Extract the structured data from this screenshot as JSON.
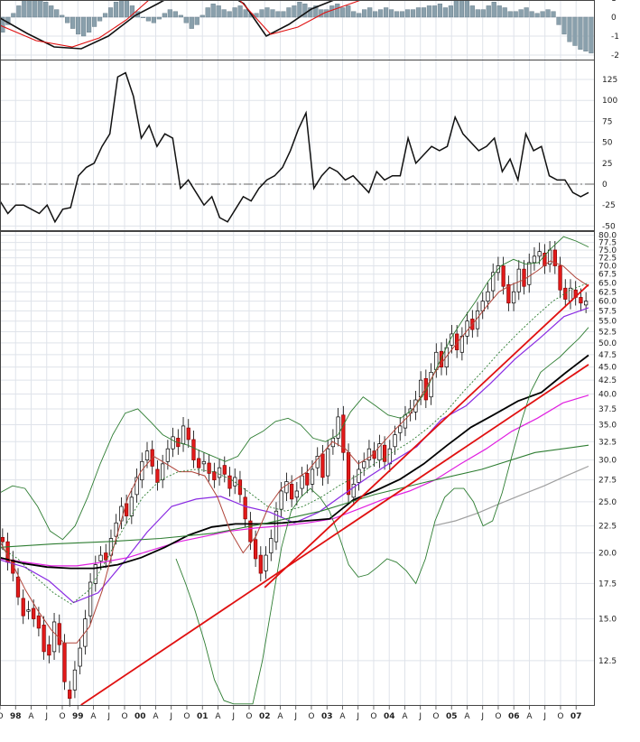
{
  "colors": {
    "grid": "#dfe3ea",
    "frame": "#444444",
    "hist_bar": "#8aa0ac",
    "macd_line": "#111111",
    "signal_line": "#e01010",
    "cci_line": "#111111",
    "candle_down": "#e31a1a",
    "candle_up": "#ffffff",
    "sma_black": "#000000",
    "purple_ma": "#8a2be2",
    "magenta_ma": "#e020e0",
    "green_band": "#2e7d32",
    "brown_ma": "#b0453a",
    "gray_ma": "#a0a0a0",
    "trendline": "#e01010"
  },
  "chart_data": [
    {
      "type": "bar",
      "panel": "macd-histogram",
      "y_ticks": [
        "1",
        "0",
        "-1",
        "-2"
      ],
      "ylim": [
        -2.3,
        1.5
      ]
    },
    {
      "type": "line",
      "panel": "cci",
      "y_ticks": [
        "125",
        "100",
        "75",
        "50",
        "25",
        "0",
        "-25",
        "-50"
      ],
      "ylim": [
        -52,
        140
      ],
      "zero_line": 0
    },
    {
      "type": "line",
      "panel": "price",
      "scale": "log",
      "y_ticks": [
        "80.0",
        "77.5",
        "75.0",
        "72.5",
        "70.0",
        "67.5",
        "65.0",
        "62.5",
        "60.0",
        "57.5",
        "55.0",
        "52.5",
        "50.0",
        "47.5",
        "45.0",
        "42.5",
        "40.0",
        "37.5",
        "35.0",
        "32.5",
        "30.0",
        "27.5",
        "25.0",
        "22.5",
        "20.0",
        "17.5",
        "15.0",
        "12.5"
      ],
      "ylim": [
        10.3,
        80.5
      ],
      "x_labels": [
        "O",
        "98",
        "A",
        "J",
        "O",
        "99",
        "A",
        "J",
        "O",
        "00",
        "A",
        "J",
        "O",
        "01",
        "A",
        "J",
        "O",
        "02",
        "A",
        "J",
        "O",
        "03",
        "A",
        "J",
        "O",
        "04",
        "A",
        "J",
        "O",
        "05",
        "A",
        "J",
        "O",
        "06",
        "A",
        "J",
        "O",
        "07"
      ],
      "series": [
        {
          "type": "candlestick",
          "values": [
            [
              21.4,
              21.0
            ],
            [
              21.0,
              19.2
            ],
            [
              19.4,
              18.3
            ],
            [
              18.0,
              16.5
            ],
            [
              16.4,
              15.2
            ],
            [
              15.5,
              15.6
            ],
            [
              15.7,
              15.0
            ],
            [
              15.2,
              14.4
            ],
            [
              14.6,
              13.0
            ],
            [
              13.4,
              12.8
            ],
            [
              13.0,
              14.8
            ],
            [
              14.7,
              13.4
            ],
            [
              13.5,
              11.4
            ],
            [
              11.0,
              10.6
            ],
            [
              11.0,
              12.0
            ],
            [
              12.2,
              13.2
            ],
            [
              13.3,
              15.0
            ],
            [
              15.2,
              17.6
            ],
            [
              17.5,
              19.0
            ],
            [
              19.3,
              19.8
            ],
            [
              20.0,
              19.4
            ],
            [
              19.8,
              21.3
            ],
            [
              21.5,
              22.8
            ],
            [
              23.0,
              24.5
            ],
            [
              24.8,
              23.5
            ],
            [
              23.5,
              25.5
            ],
            [
              25.8,
              27.8
            ],
            [
              27.5,
              29.8
            ],
            [
              30.0,
              31.2
            ],
            [
              31.4,
              29.2
            ],
            [
              28.8,
              27.2
            ],
            [
              27.5,
              29.5
            ],
            [
              29.8,
              31.5
            ],
            [
              31.5,
              33.2
            ],
            [
              33.0,
              31.8
            ],
            [
              32.2,
              34.8
            ],
            [
              34.5,
              32.8
            ],
            [
              32.8,
              30.0
            ],
            [
              30.2,
              29.0
            ],
            [
              29.5,
              29.8
            ],
            [
              29.6,
              28.3
            ],
            [
              28.5,
              27.5
            ],
            [
              27.8,
              29.0
            ],
            [
              29.3,
              28.2
            ],
            [
              28.0,
              26.5
            ],
            [
              26.8,
              27.8
            ],
            [
              27.5,
              25.8
            ],
            [
              25.5,
              23.2
            ],
            [
              23.0,
              21.0
            ],
            [
              21.2,
              19.5
            ],
            [
              19.8,
              18.3
            ],
            [
              18.5,
              19.8
            ],
            [
              20.0,
              21.3
            ],
            [
              21.0,
              24.0
            ],
            [
              24.2,
              26.2
            ],
            [
              26.0,
              27.3
            ],
            [
              27.0,
              25.3
            ],
            [
              25.5,
              26.2
            ],
            [
              26.5,
              28.0
            ],
            [
              28.3,
              26.9
            ],
            [
              27.0,
              28.8
            ],
            [
              29.0,
              30.5
            ],
            [
              30.8,
              27.8
            ],
            [
              28.0,
              31.5
            ],
            [
              31.8,
              33.0
            ],
            [
              33.0,
              36.2
            ],
            [
              36.5,
              31.0
            ],
            [
              31.0,
              25.8
            ],
            [
              25.5,
              27.0
            ],
            [
              27.2,
              28.8
            ],
            [
              29.0,
              29.8
            ],
            [
              30.0,
              31.5
            ],
            [
              31.2,
              30.2
            ],
            [
              30.0,
              32.2
            ],
            [
              32.0,
              29.8
            ],
            [
              29.5,
              31.5
            ],
            [
              31.8,
              33.5
            ],
            [
              33.8,
              34.8
            ],
            [
              34.5,
              36.5
            ],
            [
              36.8,
              37.5
            ],
            [
              37.0,
              39.0
            ],
            [
              39.5,
              42.5
            ],
            [
              42.8,
              39.0
            ],
            [
              39.5,
              44.0
            ],
            [
              44.5,
              48.0
            ],
            [
              48.2,
              45.0
            ],
            [
              45.0,
              49.0
            ],
            [
              49.5,
              52.0
            ],
            [
              52.0,
              48.5
            ],
            [
              48.0,
              51.5
            ],
            [
              51.5,
              55.0
            ],
            [
              55.5,
              53.0
            ],
            [
              53.2,
              57.5
            ],
            [
              57.5,
              60.0
            ],
            [
              60.0,
              62.5
            ],
            [
              62.8,
              68.0
            ],
            [
              68.0,
              70.0
            ],
            [
              70.0,
              64.0
            ],
            [
              64.5,
              59.5
            ],
            [
              59.5,
              62.5
            ],
            [
              62.5,
              69.0
            ],
            [
              69.0,
              64.0
            ],
            [
              64.5,
              71.0
            ],
            [
              71.0,
              73.0
            ],
            [
              73.0,
              74.5
            ],
            [
              74.0,
              70.0
            ],
            [
              70.5,
              75.0
            ],
            [
              75.0,
              70.0
            ],
            [
              70.0,
              63.0
            ],
            [
              63.5,
              60.5
            ],
            [
              60.0,
              63.5
            ],
            [
              63.0,
              61.0
            ],
            [
              61.0,
              59.5
            ],
            [
              59.0,
              60.0
            ]
          ]
        },
        {
          "type": "line",
          "name": "",
          "color": "sma_black",
          "values": [
            19.6,
            19.1,
            18.8,
            18.7,
            18.7,
            19.0,
            19.6,
            20.5,
            21.6,
            22.4,
            22.7,
            22.7,
            22.8,
            23.0,
            23.2,
            25.2,
            26.3,
            27.6,
            29.5,
            32.0,
            34.6,
            36.6,
            38.8,
            40.3,
            43.8,
            47.4
          ]
        },
        {
          "type": "line",
          "name": "",
          "color": "purple_ma",
          "values": [
            19.4,
            18.8,
            17.7,
            16.1,
            16.8,
            19.1,
            21.9,
            24.5,
            25.3,
            25.6,
            24.5,
            23.9,
            22.8,
            23.9,
            25.8,
            27.8,
            29.8,
            31.8,
            35.8,
            38.0,
            41.9,
            46.6,
            51.0,
            56.1,
            58.3
          ]
        },
        {
          "type": "line",
          "name": "",
          "color": "magenta_ma",
          "values": [
            19.5,
            19.2,
            18.9,
            18.9,
            19.2,
            19.6,
            20.3,
            21.0,
            21.5,
            22.0,
            22.3,
            22.5,
            22.8,
            23.2,
            24.2,
            25.3,
            26.2,
            27.5,
            29.5,
            31.5,
            34.0,
            36.0,
            38.5,
            39.8
          ]
        },
        {
          "type": "line",
          "name": "",
          "color": "gray_ma",
          "values": [
            22.5,
            23.0,
            23.8,
            24.8,
            25.8,
            26.8,
            28.0,
            29.2
          ]
        },
        {
          "type": "line",
          "name": "",
          "color": "green_band",
          "values": [
            20.5,
            20.8,
            21.0,
            21.3,
            21.8,
            22.8,
            24.0,
            25.8,
            27.3,
            28.8,
            31.0,
            32.0
          ]
        }
      ],
      "trendlines": [
        {
          "from": [
            1999.05,
            10.3
          ],
          "to": [
            2007.2,
            45.5
          ]
        },
        {
          "from": [
            2002.0,
            17.2
          ],
          "to": [
            2007.2,
            64.5
          ]
        }
      ]
    }
  ]
}
